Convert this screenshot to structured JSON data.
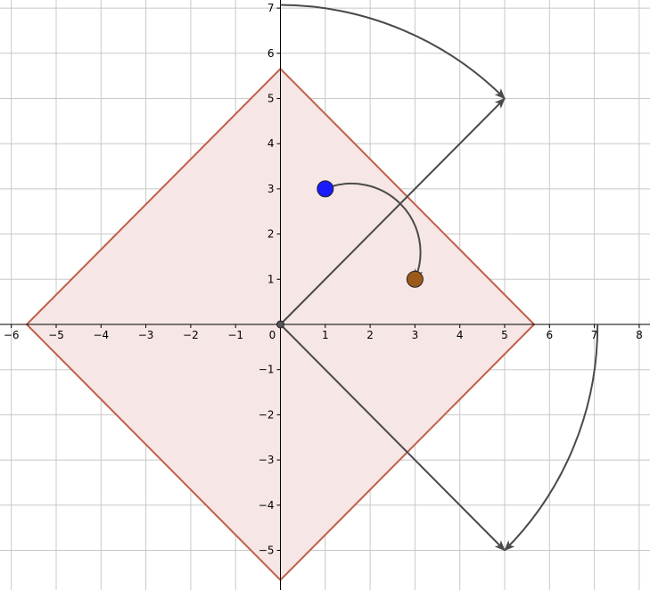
{
  "chart_data": {
    "type": "scatter",
    "title": "",
    "xlabel": "",
    "ylabel": "",
    "xlim": [
      -6.3,
      8.3
    ],
    "ylim": [
      -5.95,
      7.2
    ],
    "grid": true,
    "x_ticks": [
      -6,
      -5,
      -4,
      -3,
      -2,
      -1,
      0,
      1,
      2,
      3,
      4,
      5,
      6,
      7,
      8
    ],
    "y_ticks": [
      -5,
      -4,
      -3,
      -2,
      -1,
      1,
      2,
      3,
      4,
      5,
      6,
      7
    ],
    "tick_text": {
      "x": [
        "−6",
        "−5",
        "−4",
        "−3",
        "−2",
        "−1",
        "0",
        "1",
        "2",
        "3",
        "4",
        "5",
        "6",
        "7",
        "8"
      ],
      "y": [
        "−5",
        "−4",
        "−3",
        "−2",
        "−1",
        "1",
        "2",
        "3",
        "4",
        "5",
        "6",
        "7"
      ]
    },
    "polygon": {
      "vertices": [
        [
          0,
          5.657
        ],
        [
          5.657,
          0
        ],
        [
          0,
          -5.657
        ],
        [
          -5.657,
          0
        ]
      ],
      "stroke": "#c0604a",
      "fill": "#f6e6e5"
    },
    "vectors": [
      {
        "from": [
          0,
          0
        ],
        "to": [
          5,
          5
        ]
      },
      {
        "from": [
          0,
          0
        ],
        "to": [
          5,
          -5
        ]
      }
    ],
    "arcs": [
      {
        "from": [
          0,
          7.07
        ],
        "to": [
          5,
          5
        ],
        "center": [
          0,
          0
        ]
      },
      {
        "from": [
          7.07,
          0
        ],
        "to": [
          5,
          -5
        ],
        "center": [
          0,
          0
        ]
      },
      {
        "from": [
          1,
          3
        ],
        "to": [
          3,
          1
        ],
        "center": [
          1.6,
          1.6
        ]
      }
    ],
    "points": [
      {
        "x": 1,
        "y": 3,
        "color": "#1a1aff"
      },
      {
        "x": 3,
        "y": 1,
        "color": "#9b5a1a"
      },
      {
        "x": 0,
        "y": 0,
        "color": "#555555"
      }
    ],
    "colors": {
      "grid": "#c8c8c8",
      "axis": "#000000",
      "vector": "#4a4a4a"
    }
  }
}
